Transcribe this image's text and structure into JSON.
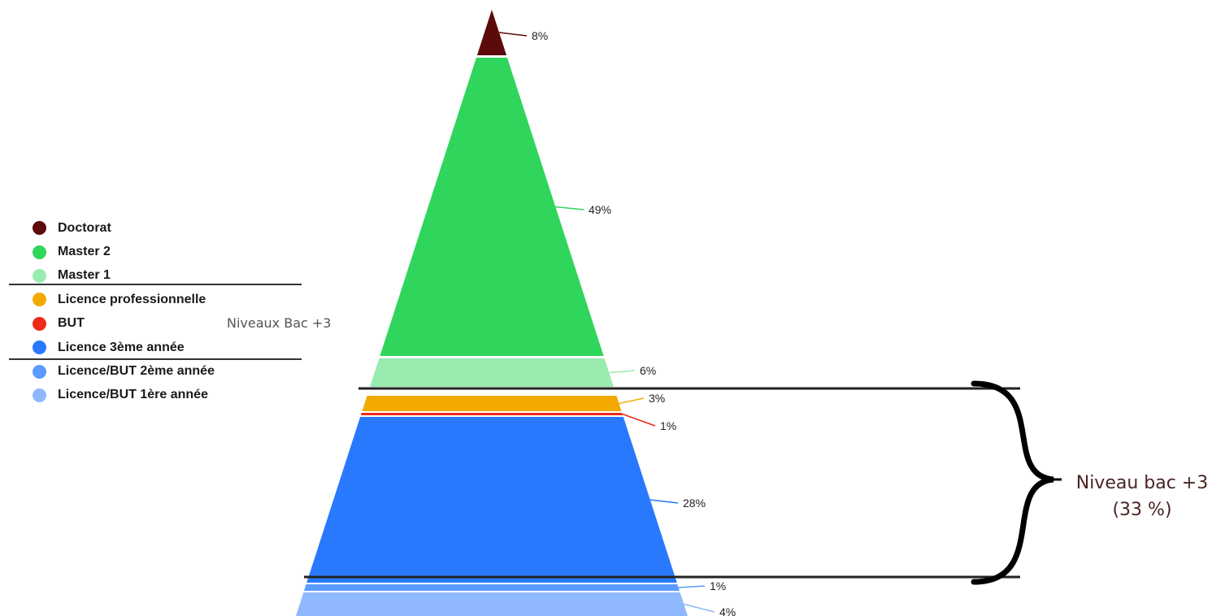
{
  "chart_data": {
    "type": "funnel",
    "title": "",
    "levels": [
      {
        "name": "Doctorat",
        "value_label": "8%",
        "color": "#5c0a0a"
      },
      {
        "name": "Master 2",
        "value_label": "49%",
        "color": "#30d55c"
      },
      {
        "name": "Master 1",
        "value_label": "6%",
        "color": "#9aebb0"
      },
      {
        "name": "Licence professionnelle",
        "value_label": "3%",
        "color": "#f2aa00"
      },
      {
        "name": "BUT",
        "value_label": "1%",
        "color": "#ee2a1b"
      },
      {
        "name": "Licence 3ème année",
        "value_label": "28%",
        "color": "#2979ff"
      },
      {
        "name": "Licence/BUT 2ème année",
        "value_label": "1%",
        "color": "#5b9bff"
      },
      {
        "name": "Licence/BUT 1ère année",
        "value_label": "4%",
        "color": "#8fb8ff"
      }
    ],
    "legend_position": "left"
  },
  "legend": {
    "side_note": "Niveaux Bac +3"
  },
  "annotation": {
    "line1": "Niveau bac +3",
    "line2": "(33 %)"
  }
}
